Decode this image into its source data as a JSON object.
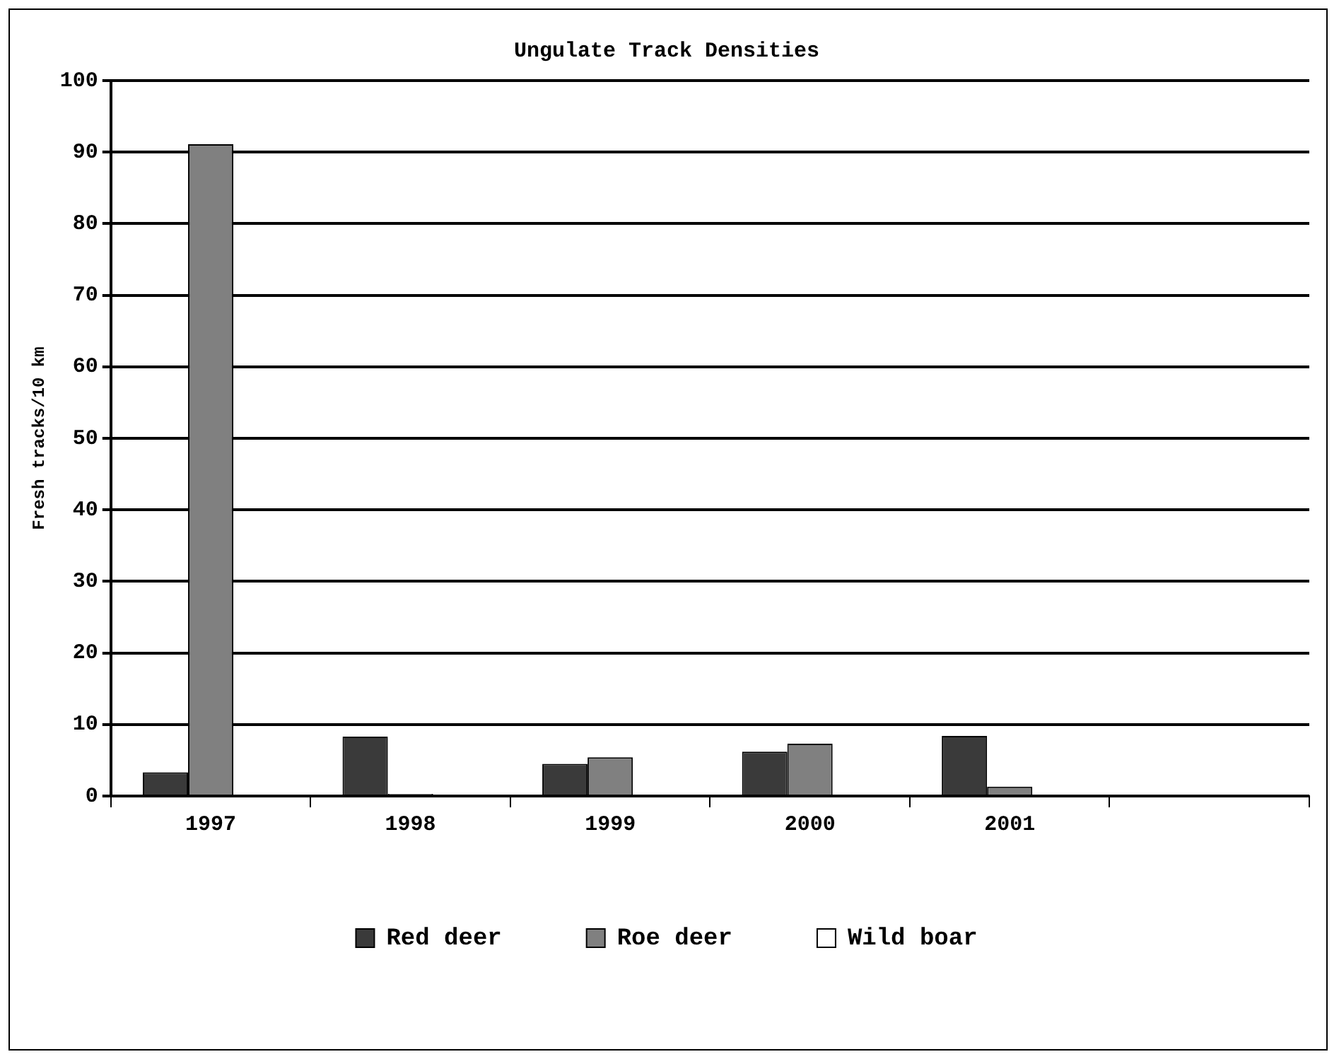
{
  "chart_data": {
    "type": "bar",
    "title": "Ungulate Track Densities",
    "ylabel": "Fresh tracks/10 km",
    "categories": [
      "1997",
      "1998",
      "1999",
      "2000",
      "2001",
      null
    ],
    "series": [
      {
        "name": "Red deer",
        "color": "#3a3a3a",
        "values": [
          3.3,
          8.3,
          4.5,
          6.2,
          8.4,
          null
        ]
      },
      {
        "name": "Roe deer",
        "color": "#808080",
        "values": [
          91.1,
          0.3,
          5.4,
          7.3,
          1.3,
          null
        ]
      },
      {
        "name": "Wild boar",
        "color": "#ffffff",
        "values": [
          null,
          null,
          null,
          null,
          null,
          null
        ]
      }
    ],
    "ylim": [
      0,
      100
    ],
    "yticks": [
      0,
      10,
      20,
      30,
      40,
      50,
      60,
      70,
      80,
      90,
      100
    ],
    "grid": "y",
    "legend": "bottom"
  }
}
